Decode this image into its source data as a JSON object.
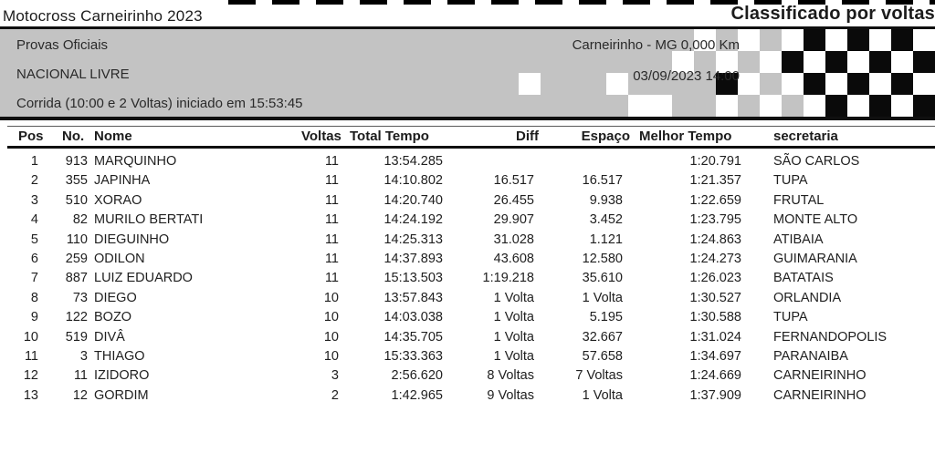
{
  "header": {
    "title": "Motocross Carneirinho 2023",
    "classification": "Classificado por voltas"
  },
  "event": {
    "series": "Provas Oficiais",
    "location": "Carneirinho - MG 0,000 Km",
    "category": "NACIONAL LIVRE",
    "datetime": "03/09/2023 14:00",
    "race_info": "Corrida (10:00 e 2 Voltas) iniciado em 15:53:45"
  },
  "flag": {
    "rows": [
      "gggggggggwgwgwbwbwbw",
      "ggggggggwgwgwbwbwbwb",
      "gwgggwggggbwgwbwbwbw",
      "ggggggwwggwgwgwbwbwb"
    ],
    "colors": {
      "g": "transparent",
      "w": "#ffffff",
      "b": "#0a0a0a"
    }
  },
  "table": {
    "columns": [
      "Pos",
      "No.",
      "Nome",
      "Voltas",
      "Total Tempo",
      "Diff",
      "Espaço",
      "Melhor Tempo",
      "secretaria"
    ],
    "rows": [
      {
        "pos": "1",
        "no": "913",
        "nome": "MARQUINHO",
        "voltas": "11",
        "total": "13:54.285",
        "diff": "",
        "espaco": "",
        "melhor": "1:20.791",
        "secretaria": "SÃO CARLOS"
      },
      {
        "pos": "2",
        "no": "355",
        "nome": "JAPINHA",
        "voltas": "11",
        "total": "14:10.802",
        "diff": "16.517",
        "espaco": "16.517",
        "melhor": "1:21.357",
        "secretaria": "TUPA"
      },
      {
        "pos": "3",
        "no": "510",
        "nome": "XORAO",
        "voltas": "11",
        "total": "14:20.740",
        "diff": "26.455",
        "espaco": "9.938",
        "melhor": "1:22.659",
        "secretaria": "FRUTAL"
      },
      {
        "pos": "4",
        "no": "82",
        "nome": "MURILO BERTATI",
        "voltas": "11",
        "total": "14:24.192",
        "diff": "29.907",
        "espaco": "3.452",
        "melhor": "1:23.795",
        "secretaria": "MONTE ALTO"
      },
      {
        "pos": "5",
        "no": "110",
        "nome": "DIEGUINHO",
        "voltas": "11",
        "total": "14:25.313",
        "diff": "31.028",
        "espaco": "1.121",
        "melhor": "1:24.863",
        "secretaria": "ATIBAIA"
      },
      {
        "pos": "6",
        "no": "259",
        "nome": "ODILON",
        "voltas": "11",
        "total": "14:37.893",
        "diff": "43.608",
        "espaco": "12.580",
        "melhor": "1:24.273",
        "secretaria": "GUIMARANIA"
      },
      {
        "pos": "7",
        "no": "887",
        "nome": "LUIZ EDUARDO",
        "voltas": "11",
        "total": "15:13.503",
        "diff": "1:19.218",
        "espaco": "35.610",
        "melhor": "1:26.023",
        "secretaria": "BATATAIS"
      },
      {
        "pos": "8",
        "no": "73",
        "nome": "DIEGO",
        "voltas": "10",
        "total": "13:57.843",
        "diff": "1 Volta",
        "espaco": "1 Volta",
        "melhor": "1:30.527",
        "secretaria": "ORLANDIA"
      },
      {
        "pos": "9",
        "no": "122",
        "nome": "BOZO",
        "voltas": "10",
        "total": "14:03.038",
        "diff": "1 Volta",
        "espaco": "5.195",
        "melhor": "1:30.588",
        "secretaria": "TUPA"
      },
      {
        "pos": "10",
        "no": "519",
        "nome": "DIVÂ",
        "voltas": "10",
        "total": "14:35.705",
        "diff": "1 Volta",
        "espaco": "32.667",
        "melhor": "1:31.024",
        "secretaria": "FERNANDOPOLIS"
      },
      {
        "pos": "11",
        "no": "3",
        "nome": "THIAGO",
        "voltas": "10",
        "total": "15:33.363",
        "diff": "1 Volta",
        "espaco": "57.658",
        "melhor": "1:34.697",
        "secretaria": "PARANAIBA"
      },
      {
        "pos": "12",
        "no": "11",
        "nome": "IZIDORO",
        "voltas": "3",
        "total": "2:56.620",
        "diff": "8 Voltas",
        "espaco": "7 Voltas",
        "melhor": "1:24.669",
        "secretaria": "CARNEIRINHO"
      },
      {
        "pos": "13",
        "no": "12",
        "nome": "GORDIM",
        "voltas": "2",
        "total": "1:42.965",
        "diff": "9 Voltas",
        "espaco": "1 Volta",
        "melhor": "1:37.909",
        "secretaria": "CARNEIRINHO"
      }
    ]
  },
  "colors": {
    "panel_gray": "#c3c3c3",
    "rule_black": "#101010",
    "text": "#1c1c1c"
  }
}
